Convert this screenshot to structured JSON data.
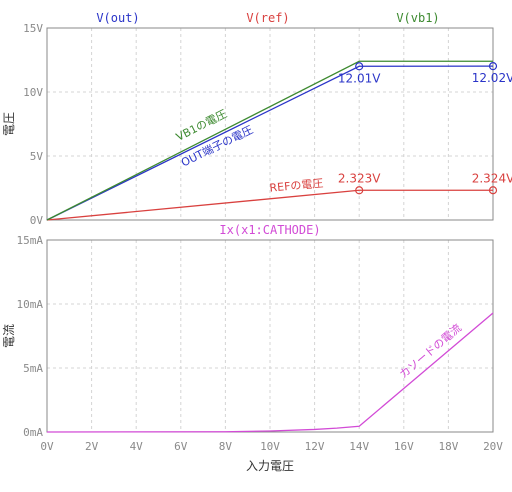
{
  "colors": {
    "out": "#2b35c8",
    "ref": "#d9413f",
    "vb1": "#3d8a30",
    "ix": "#d24bd6",
    "grid": "#d4d4d4",
    "axis": "#8a8a8a",
    "label": "#333333"
  },
  "chart_data": [
    {
      "type": "line",
      "panel": "upper",
      "ylabel": "電圧",
      "xlabel": "入力電圧",
      "xlim": [
        0,
        20
      ],
      "ylim": [
        0,
        15
      ],
      "x_ticks": [
        "0V",
        "2V",
        "4V",
        "6V",
        "8V",
        "10V",
        "12V",
        "14V",
        "16V",
        "18V",
        "20V"
      ],
      "y_ticks": [
        "0V",
        "5V",
        "10V",
        "15V"
      ],
      "grid": true,
      "series": [
        {
          "key": "out",
          "name": "V(out)",
          "annotation": "OUT端子の電圧",
          "x": [
            0,
            14,
            20
          ],
          "y": [
            0,
            12.01,
            12.02
          ]
        },
        {
          "key": "ref",
          "name": "V(ref)",
          "annotation": "REFの電圧",
          "x": [
            0,
            14,
            20
          ],
          "y": [
            0,
            2.323,
            2.324
          ]
        },
        {
          "key": "vb1",
          "name": "V(vb1)",
          "annotation": "VB1の電圧",
          "x": [
            0,
            14,
            20
          ],
          "y": [
            0,
            12.4,
            12.4
          ]
        }
      ],
      "markers": [
        {
          "series": "out",
          "x": 14,
          "y": 12.01,
          "label": "12.01V"
        },
        {
          "series": "out",
          "x": 20,
          "y": 12.02,
          "label": "12.02V"
        },
        {
          "series": "ref",
          "x": 14,
          "y": 2.323,
          "label": "2.323V"
        },
        {
          "series": "ref",
          "x": 20,
          "y": 2.324,
          "label": "2.324V"
        }
      ]
    },
    {
      "type": "line",
      "panel": "lower",
      "ylabel": "電流",
      "xlabel": "入力電圧",
      "xlim": [
        0,
        20
      ],
      "ylim": [
        0,
        15
      ],
      "x_ticks": [
        "0V",
        "2V",
        "4V",
        "6V",
        "8V",
        "10V",
        "12V",
        "14V",
        "16V",
        "18V",
        "20V"
      ],
      "y_ticks": [
        "0mA",
        "5mA",
        "10mA",
        "15mA"
      ],
      "grid": true,
      "series": [
        {
          "key": "ix",
          "name": "Ix(x1:CATHODE)",
          "annotation": "カソードの電流",
          "x": [
            0,
            8,
            10,
            12,
            13,
            14,
            20
          ],
          "y": [
            0,
            0.02,
            0.08,
            0.2,
            0.3,
            0.45,
            9.3
          ]
        }
      ]
    }
  ]
}
